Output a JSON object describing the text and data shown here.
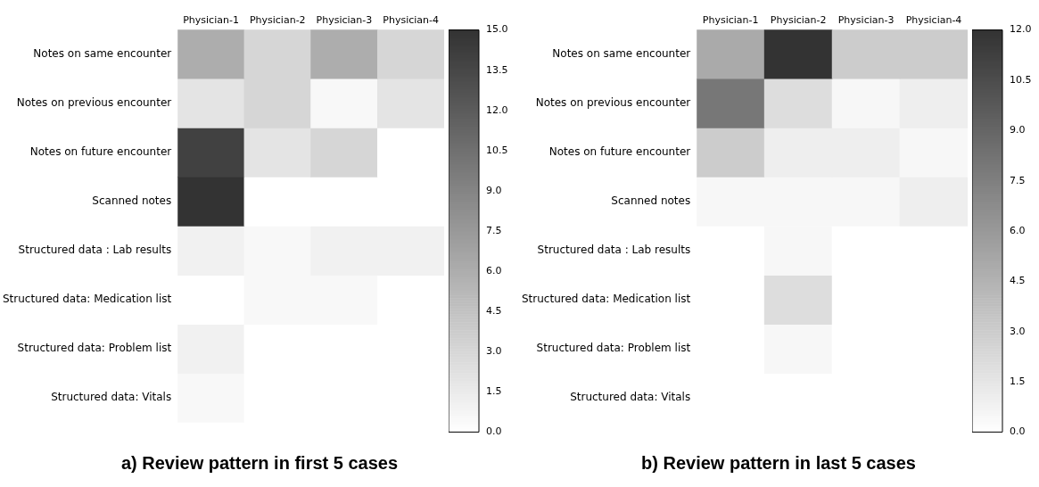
{
  "chart_data": [
    {
      "type": "heatmap",
      "title": "a) Review pattern in first 5 cases",
      "categories": [
        "Physician-1",
        "Physician-2",
        "Physician-3",
        "Physician-4"
      ],
      "y_categories": [
        "Notes on same encounter",
        "Notes on previous encounter",
        "Notes on future encounter",
        "Scanned notes",
        "Structured data : Lab results",
        "Structured data: Medication list",
        "Structured data: Problem list",
        "Structured data: Vitals"
      ],
      "cells": [
        [
          6,
          3,
          6,
          3
        ],
        [
          2,
          3,
          0.5,
          2
        ],
        [
          14,
          2,
          3,
          0
        ],
        [
          15,
          0,
          0,
          0
        ],
        [
          1,
          0.5,
          1,
          1
        ],
        [
          0,
          0.5,
          0.5,
          0
        ],
        [
          1,
          0,
          0,
          0
        ],
        [
          0.5,
          0,
          0,
          0
        ]
      ],
      "clim": [
        0,
        15
      ],
      "cticks": [
        {
          "value": 0,
          "label": "0.0"
        },
        1.5,
        {
          "value": 3,
          "label": "3.0"
        },
        4.5,
        {
          "value": 6,
          "label": "6.0"
        },
        7.5,
        {
          "value": 9,
          "label": "9.0"
        },
        10.5,
        {
          "value": 12,
          "label": "12.0"
        },
        13.5,
        {
          "value": 15,
          "label": "15.0"
        }
      ],
      "grid": false
    },
    {
      "type": "heatmap",
      "title": "b) Review pattern in last 5 cases",
      "categories": [
        "Physician-1",
        "Physician-2",
        "Physician-3",
        "Physician-4"
      ],
      "y_categories": [
        "Notes on same encounter",
        "Notes on previous encounter",
        "Notes on future encounter",
        "Scanned notes",
        "Structured data : Lab results",
        "Structured data: Medication list",
        "Structured data: Problem list",
        "Structured data: Vitals"
      ],
      "cells": [
        [
          5,
          12,
          3,
          3
        ],
        [
          8,
          2,
          0.5,
          1
        ],
        [
          3,
          1,
          1,
          0.5
        ],
        [
          0.5,
          0.5,
          0.5,
          1
        ],
        [
          0,
          0.5,
          0,
          0
        ],
        [
          0,
          2,
          0,
          0
        ],
        [
          0,
          0.5,
          0,
          0
        ],
        [
          0,
          0,
          0,
          0
        ]
      ],
      "clim": [
        0,
        12
      ],
      "cticks": [
        {
          "value": 0,
          "label": "0.0"
        },
        1.5,
        {
          "value": 3,
          "label": "3.0"
        },
        4.5,
        {
          "value": 6,
          "label": "6.0"
        },
        7.5,
        {
          "value": 9,
          "label": "9.0"
        },
        10.5,
        {
          "value": 12,
          "label": "12.0"
        }
      ],
      "grid": false
    }
  ]
}
